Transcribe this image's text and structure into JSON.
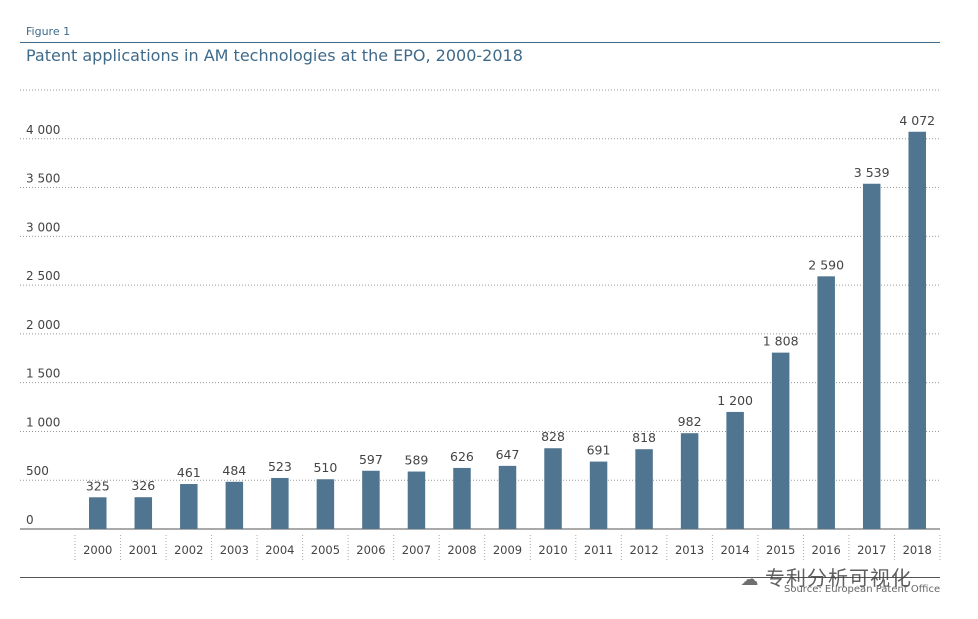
{
  "figure_label": "Figure 1",
  "watermark": {
    "icon": "wechat-icon",
    "text": "专利分析可视化"
  },
  "source": "Source: European Patent Office",
  "colors": {
    "bar": "#507590",
    "title": "#3f6a8a",
    "grid": "#9a9a9a"
  },
  "chart_data": {
    "type": "bar",
    "title": "Patent applications in AM technologies at the EPO, 2000-2018",
    "categories": [
      "2000",
      "2001",
      "2002",
      "2003",
      "2004",
      "2005",
      "2006",
      "2007",
      "2008",
      "2009",
      "2010",
      "2011",
      "2012",
      "2013",
      "2014",
      "2015",
      "2016",
      "2017",
      "2018"
    ],
    "values": [
      325,
      326,
      461,
      484,
      523,
      510,
      597,
      589,
      626,
      647,
      828,
      691,
      818,
      982,
      1200,
      1808,
      2590,
      3539,
      4072
    ],
    "value_labels": [
      "325",
      "326",
      "461",
      "484",
      "523",
      "510",
      "597",
      "589",
      "626",
      "647",
      "828",
      "691",
      "818",
      "982",
      "1 200",
      "1 808",
      "2 590",
      "3 539",
      "4 072"
    ],
    "ylim": [
      0,
      4500
    ],
    "yticks": [
      0,
      500,
      1000,
      1500,
      2000,
      2500,
      3000,
      3500,
      4000
    ],
    "ytick_labels": [
      "0",
      "500",
      "1 000",
      "1 500",
      "2 000",
      "2 500",
      "3 000",
      "3 500",
      "4 000"
    ],
    "xlabel": "",
    "ylabel": "",
    "grid": true,
    "legend": "none"
  }
}
